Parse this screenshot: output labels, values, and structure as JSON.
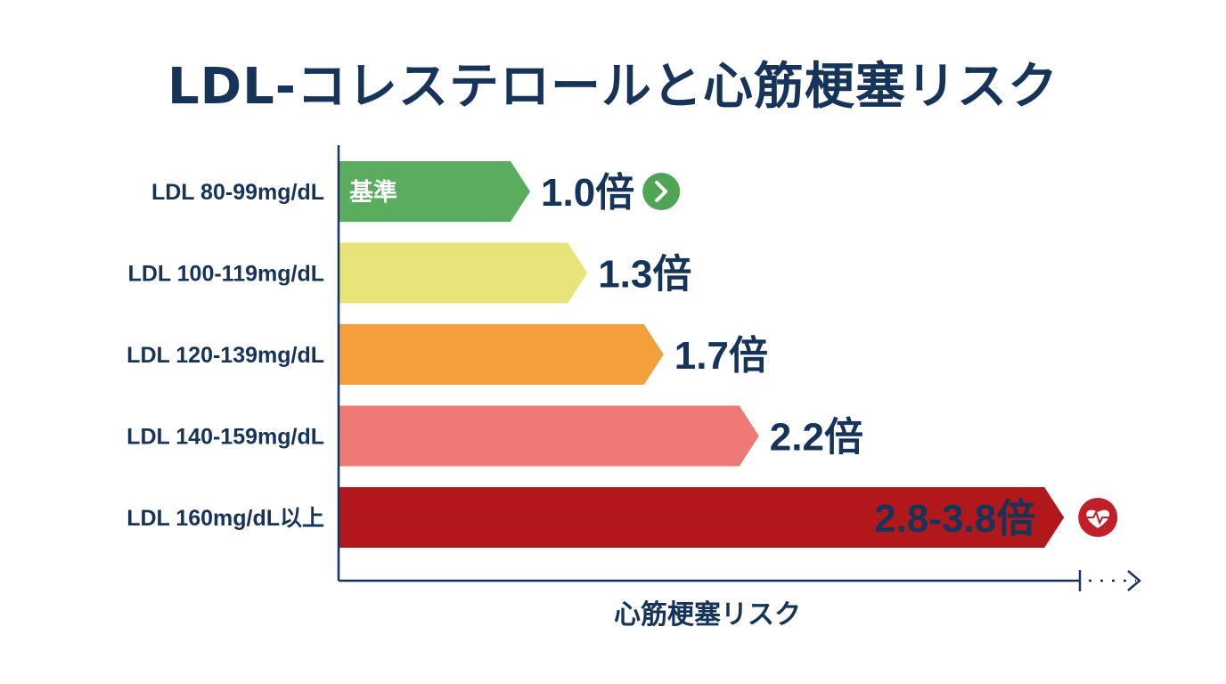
{
  "chart_data": {
    "type": "bar",
    "orientation": "horizontal",
    "title": "LDL-コレステロールと心筋梗塞リスク",
    "xlabel": "心筋梗塞リスク",
    "ylabel": "",
    "grid": false,
    "categories": [
      "LDL 80-99mg/dL",
      "LDL 100-119mg/dL",
      "LDL 120-139mg/dL",
      "LDL 140-159mg/dL",
      "LDL 160mg/dL以上"
    ],
    "values": [
      1.0,
      1.3,
      1.7,
      2.2,
      3.8
    ],
    "value_ranges": [
      null,
      null,
      null,
      null,
      [
        2.8,
        3.8
      ]
    ],
    "data_labels": [
      "1.0倍",
      "1.3倍",
      "1.7倍",
      "2.2倍",
      "2.8-3.8倍"
    ],
    "bar_inner_labels": [
      "基準",
      "",
      "",
      "",
      ""
    ],
    "colors": [
      "#5aad5e",
      "#e8e47a",
      "#f2a03c",
      "#ee7a76",
      "#b0181b"
    ],
    "label_colors": [
      "#16345a",
      "#16345a",
      "#16345a",
      "#16345a",
      "#ffffff"
    ],
    "icons": [
      "chevron-right-circle-icon",
      null,
      null,
      null,
      "heart-pulse-icon"
    ],
    "icon_colors": [
      "#4fa455",
      null,
      null,
      null,
      "#c0202a"
    ],
    "axis_color": "#16345a"
  }
}
